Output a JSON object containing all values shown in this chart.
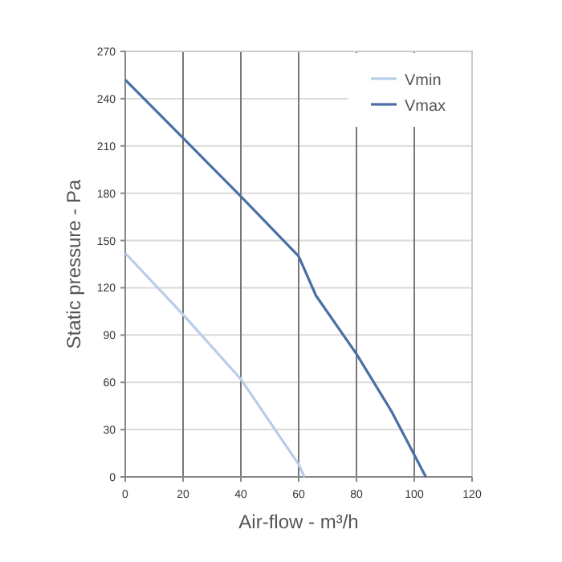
{
  "chart_data": {
    "type": "line",
    "xlabel": "Air-flow - m³/h",
    "ylabel": "Static pressure - Pa",
    "xlim": [
      0,
      120
    ],
    "ylim": [
      0,
      270
    ],
    "xticks": [
      0,
      20,
      40,
      60,
      80,
      100,
      120
    ],
    "yticks": [
      0,
      30,
      60,
      90,
      120,
      150,
      180,
      210,
      240,
      270
    ],
    "grid": true,
    "legend": "top right",
    "marker": "none",
    "line_style": "solid",
    "series": [
      {
        "name": "Vmin",
        "color": "#b8cde8",
        "x": [
          0,
          20,
          40,
          50,
          60,
          62
        ],
        "values": [
          142,
          103,
          62,
          35,
          8,
          0
        ]
      },
      {
        "name": "Vmax",
        "color": "#4a6fa5",
        "x": [
          0,
          20,
          40,
          60,
          66,
          80,
          92,
          104
        ],
        "values": [
          252,
          215,
          178,
          140,
          115,
          78,
          42,
          0
        ]
      }
    ]
  }
}
